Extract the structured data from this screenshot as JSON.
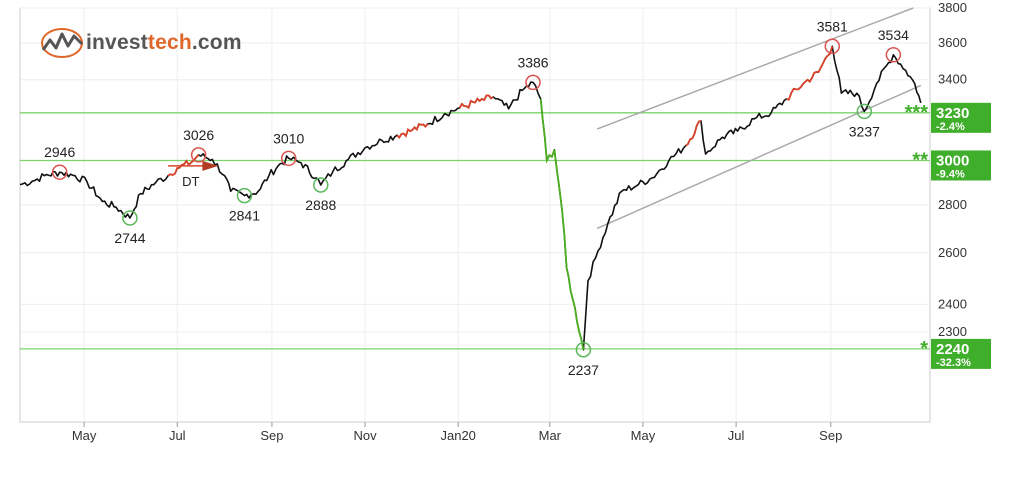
{
  "brand": {
    "name_left": "invest",
    "name_right": "tech",
    "name_suffix": ".com",
    "logo_icon": "chart-logo-icon"
  },
  "colors": {
    "price_line": "#111111",
    "up_segment": "#d9442b",
    "down_segment": "#4caf1f",
    "support_line": "#7dd36a",
    "channel_line": "#aaaaaa",
    "top_marker": "#d9534f",
    "bottom_marker": "#5cb85c",
    "label_box": "#3fae2a",
    "label_star": "#3fae2a"
  },
  "chart_data": {
    "type": "line",
    "title": "",
    "xlabel": "",
    "ylabel": "",
    "y_axis": "log",
    "ylim": [
      2000,
      3800
    ],
    "y_ticks": [
      2300,
      2400,
      2600,
      2800,
      3000,
      3230,
      3400,
      3600,
      3800
    ],
    "grid": true,
    "x_ticks": [
      "May",
      "Jul",
      "Sep",
      "Nov",
      "Jan20",
      "Mar",
      "May",
      "Jul",
      "Sep"
    ],
    "x_tick_dates": [
      "2019-05-01",
      "2019-07-01",
      "2019-09-01",
      "2019-11-01",
      "2020-01-01",
      "2020-03-01",
      "2020-05-01",
      "2020-07-01",
      "2020-09-01"
    ],
    "x_range": [
      "2019-03-20",
      "2020-11-05"
    ],
    "series": [
      {
        "points": [
          [
            "2019-03-20",
            2890
          ],
          [
            "2019-03-28",
            2905
          ],
          [
            "2019-04-05",
            2930
          ],
          [
            "2019-04-15",
            2946
          ],
          [
            "2019-04-25",
            2930
          ],
          [
            "2019-05-03",
            2900
          ],
          [
            "2019-05-13",
            2815
          ],
          [
            "2019-05-22",
            2790
          ],
          [
            "2019-05-31",
            2744
          ],
          [
            "2019-06-07",
            2850
          ],
          [
            "2019-06-17",
            2900
          ],
          [
            "2019-06-25",
            2930
          ],
          [
            "2019-07-01",
            2965
          ],
          [
            "2019-07-10",
            2990
          ],
          [
            "2019-07-15",
            3026
          ],
          [
            "2019-07-24",
            3005
          ],
          [
            "2019-08-01",
            2930
          ],
          [
            "2019-08-05",
            2860
          ],
          [
            "2019-08-14",
            2841
          ],
          [
            "2019-08-23",
            2860
          ],
          [
            "2019-08-30",
            2930
          ],
          [
            "2019-09-05",
            2975
          ],
          [
            "2019-09-12",
            3010
          ],
          [
            "2019-09-20",
            2990
          ],
          [
            "2019-09-30",
            2920
          ],
          [
            "2019-10-03",
            2888
          ],
          [
            "2019-10-11",
            2950
          ],
          [
            "2019-10-21",
            3005
          ],
          [
            "2019-11-01",
            3060
          ],
          [
            "2019-11-12",
            3095
          ],
          [
            "2019-11-22",
            3120
          ],
          [
            "2019-12-02",
            3145
          ],
          [
            "2019-12-12",
            3175
          ],
          [
            "2019-12-23",
            3225
          ],
          [
            "2020-01-02",
            3255
          ],
          [
            "2020-01-15",
            3290
          ],
          [
            "2020-01-24",
            3310
          ],
          [
            "2020-02-03",
            3250
          ],
          [
            "2020-02-12",
            3345
          ],
          [
            "2020-02-19",
            3386
          ],
          [
            "2020-02-24",
            3300
          ],
          [
            "2020-02-28",
            3000
          ],
          [
            "2020-03-04",
            3050
          ],
          [
            "2020-03-09",
            2780
          ],
          [
            "2020-03-12",
            2540
          ],
          [
            "2020-03-16",
            2420
          ],
          [
            "2020-03-23",
            2237
          ],
          [
            "2020-03-26",
            2490
          ],
          [
            "2020-03-31",
            2580
          ],
          [
            "2020-04-08",
            2720
          ],
          [
            "2020-04-17",
            2860
          ],
          [
            "2020-04-28",
            2890
          ],
          [
            "2020-05-07",
            2920
          ],
          [
            "2020-05-18",
            3000
          ],
          [
            "2020-05-29",
            3070
          ],
          [
            "2020-06-08",
            3190
          ],
          [
            "2020-06-11",
            3030
          ],
          [
            "2020-06-22",
            3110
          ],
          [
            "2020-07-02",
            3140
          ],
          [
            "2020-07-13",
            3200
          ],
          [
            "2020-07-24",
            3230
          ],
          [
            "2020-08-03",
            3300
          ],
          [
            "2020-08-14",
            3380
          ],
          [
            "2020-08-24",
            3440
          ],
          [
            "2020-09-02",
            3581
          ],
          [
            "2020-09-08",
            3330
          ],
          [
            "2020-09-18",
            3330
          ],
          [
            "2020-09-23",
            3237
          ],
          [
            "2020-10-01",
            3380
          ],
          [
            "2020-10-12",
            3534
          ],
          [
            "2020-10-20",
            3450
          ],
          [
            "2020-10-26",
            3380
          ],
          [
            "2020-10-30",
            3280
          ]
        ]
      }
    ],
    "colored_segments": [
      {
        "color": "up",
        "from": "2019-06-25",
        "to": "2019-07-15"
      },
      {
        "color": "up",
        "from": "2019-11-22",
        "to": "2019-12-12"
      },
      {
        "color": "up",
        "from": "2020-01-02",
        "to": "2020-01-24"
      },
      {
        "color": "down",
        "from": "2020-02-24",
        "to": "2020-03-23"
      },
      {
        "color": "up",
        "from": "2020-05-29",
        "to": "2020-06-08"
      },
      {
        "color": "up",
        "from": "2020-08-03",
        "to": "2020-09-02"
      }
    ],
    "support_lines": [
      {
        "value": 3230,
        "label": "3230",
        "pct": "-2.4%",
        "stars": "***"
      },
      {
        "value": 3000,
        "label": "3000",
        "pct": "-9.4%",
        "stars": "**"
      },
      {
        "value": 2240,
        "label": "2240",
        "pct": "-32.3%",
        "stars": "*"
      }
    ],
    "channel": {
      "upper": [
        [
          "2020-04-01",
          3150
        ],
        [
          "2020-10-25",
          3800
        ]
      ],
      "lower": [
        [
          "2020-04-01",
          2700
        ],
        [
          "2020-10-30",
          3370
        ]
      ]
    },
    "markers": [
      {
        "type": "top",
        "date": "2019-04-15",
        "value": 2946,
        "label": "2946",
        "label_pos": "above"
      },
      {
        "type": "bottom",
        "date": "2019-05-31",
        "value": 2744,
        "label": "2744",
        "label_pos": "below"
      },
      {
        "type": "top",
        "date": "2019-07-15",
        "value": 3026,
        "label": "3026",
        "label_pos": "above"
      },
      {
        "type": "bottom",
        "date": "2019-08-14",
        "value": 2841,
        "label": "2841",
        "label_pos": "below"
      },
      {
        "type": "top",
        "date": "2019-09-12",
        "value": 3010,
        "label": "3010",
        "label_pos": "above"
      },
      {
        "type": "bottom",
        "date": "2019-10-03",
        "value": 2888,
        "label": "2888",
        "label_pos": "below"
      },
      {
        "type": "top",
        "date": "2020-02-19",
        "value": 3386,
        "label": "3386",
        "label_pos": "above"
      },
      {
        "type": "bottom",
        "date": "2020-03-23",
        "value": 2237,
        "label": "2237",
        "label_pos": "below"
      },
      {
        "type": "top",
        "date": "2020-09-02",
        "value": 3581,
        "label": "3581",
        "label_pos": "above"
      },
      {
        "type": "bottom",
        "date": "2020-09-23",
        "value": 3237,
        "label": "3237",
        "label_pos": "below"
      },
      {
        "type": "top",
        "date": "2020-10-12",
        "value": 3534,
        "label": "3534",
        "label_pos": "above"
      }
    ],
    "pattern": {
      "label": "DT",
      "from": "2019-06-25",
      "to": "2019-07-24",
      "value": 2975
    }
  }
}
